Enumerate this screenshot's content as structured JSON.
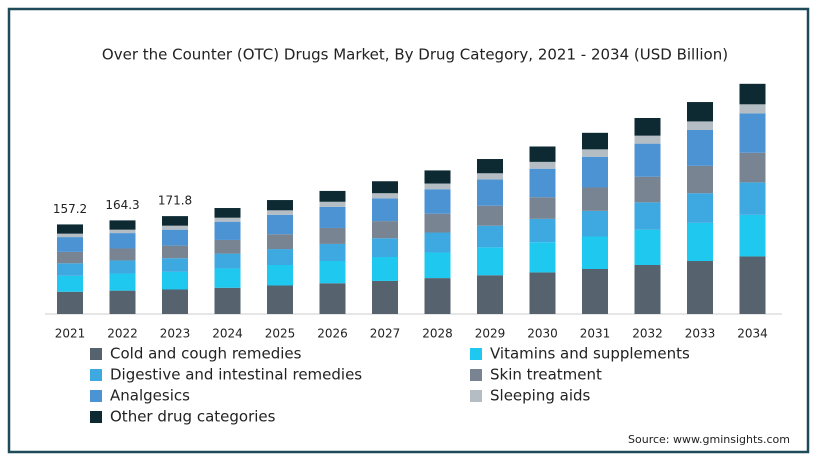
{
  "chart_data": {
    "type": "stacked-bar",
    "title": "Over the Counter (OTC) Drugs Market, By Drug Category, 2021 - 2034 (USD Billion)",
    "categories": [
      "2021",
      "2022",
      "2023",
      "2024",
      "2025",
      "2026",
      "2027",
      "2028",
      "2029",
      "2030",
      "2031",
      "2032",
      "2033",
      "2034"
    ],
    "series": [
      {
        "name": "Cold and cough remedies",
        "color": "#56636e",
        "values": [
          39,
          41,
          43,
          46,
          50,
          54,
          58,
          63,
          68,
          73,
          79,
          86,
          93,
          101
        ]
      },
      {
        "name": "Vitamins and supplements",
        "color": "#1ec8ef",
        "values": [
          28,
          30,
          31,
          34,
          36,
          39,
          42,
          45,
          49,
          53,
          57,
          62,
          67,
          73
        ]
      },
      {
        "name": "Digestive and intestinal remedies",
        "color": "#3ea8e0",
        "values": [
          22,
          23,
          24,
          26,
          28,
          30,
          33,
          35,
          38,
          41,
          45,
          48,
          52,
          57
        ]
      },
      {
        "name": "Skin treatment",
        "color": "#788491",
        "values": [
          20,
          21,
          22,
          24,
          26,
          28,
          30,
          33,
          35,
          38,
          41,
          45,
          48,
          52
        ]
      },
      {
        "name": "Analgesics",
        "color": "#4c93d4",
        "values": [
          26,
          27,
          28,
          32,
          34,
          37,
          40,
          43,
          46,
          50,
          54,
          58,
          63,
          69
        ]
      },
      {
        "name": "Sleeping aids",
        "color": "#b4bcc4",
        "values": [
          6,
          6,
          7,
          7,
          8,
          9,
          9,
          10,
          11,
          12,
          13,
          14,
          15,
          16
        ]
      },
      {
        "name": "Other drug categories",
        "color": "#0d2a33",
        "values": [
          16.2,
          16.3,
          16.8,
          17,
          18,
          19,
          21,
          23,
          25,
          27,
          29,
          31,
          34,
          36
        ]
      }
    ],
    "totals": [
      157.2,
      164.3,
      171.8
    ],
    "ylim": [
      0,
      430
    ],
    "source": "Source: www.gminsights.com"
  }
}
